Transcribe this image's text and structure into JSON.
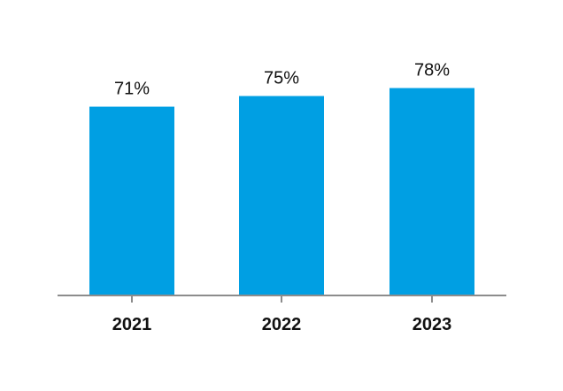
{
  "colors": {
    "bar": "#009FE3",
    "axis": "#8C8C8C",
    "text": "#111111"
  },
  "chart_data": {
    "type": "bar",
    "categories": [
      "2021",
      "2022",
      "2023"
    ],
    "values": [
      71,
      75,
      78
    ],
    "data_labels": [
      "71%",
      "75%",
      "78%"
    ],
    "title": "",
    "xlabel": "",
    "ylabel": "",
    "ylim": [
      0,
      100
    ],
    "grid": false,
    "legend": "none"
  }
}
